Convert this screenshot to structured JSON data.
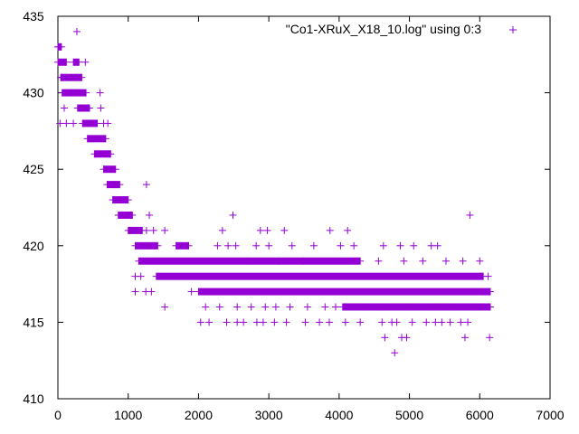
{
  "chart_data": {
    "type": "scatter",
    "title": "",
    "xlabel": "",
    "ylabel": "",
    "xlim": [
      0,
      7000
    ],
    "ylim": [
      410,
      435
    ],
    "x_ticks": [
      0,
      1000,
      2000,
      3000,
      4000,
      5000,
      6000,
      7000
    ],
    "y_ticks": [
      410,
      415,
      420,
      425,
      430,
      435
    ],
    "grid": false,
    "legend_position": "top-right",
    "marker": "+",
    "series": [
      {
        "name": "\"Co1-XRuX_X18_10.log\" using 0:3",
        "color": "#9400d3",
        "segments": [
          {
            "y": 433,
            "x_from": 0,
            "x_to": 50
          },
          {
            "y": 432,
            "x_from": 0,
            "x_to": 120
          },
          {
            "y": 432,
            "x_from": 220,
            "x_to": 300
          },
          {
            "y": 431,
            "x_from": 40,
            "x_to": 340
          },
          {
            "y": 430,
            "x_from": 60,
            "x_to": 400
          },
          {
            "y": 429,
            "x_from": 280,
            "x_to": 450
          },
          {
            "y": 428,
            "x_from": 350,
            "x_to": 560
          },
          {
            "y": 427,
            "x_from": 420,
            "x_to": 680
          },
          {
            "y": 426,
            "x_from": 520,
            "x_to": 750
          },
          {
            "y": 425,
            "x_from": 650,
            "x_to": 820
          },
          {
            "y": 424,
            "x_from": 700,
            "x_to": 880
          },
          {
            "y": 423,
            "x_from": 780,
            "x_to": 1000
          },
          {
            "y": 422,
            "x_from": 860,
            "x_to": 1060
          },
          {
            "y": 421,
            "x_from": 1000,
            "x_to": 1200
          },
          {
            "y": 420,
            "x_from": 1100,
            "x_to": 1420
          },
          {
            "y": 420,
            "x_from": 1680,
            "x_to": 1860
          },
          {
            "y": 419,
            "x_from": 1150,
            "x_to": 4300
          },
          {
            "y": 418,
            "x_from": 1400,
            "x_to": 6050
          },
          {
            "y": 417,
            "x_from": 2000,
            "x_to": 6150
          },
          {
            "y": 416,
            "x_from": 4050,
            "x_to": 6150
          }
        ],
        "points": [
          [
            20,
            433
          ],
          [
            270,
            434
          ],
          [
            30,
            428
          ],
          [
            90,
            429
          ],
          [
            120,
            428
          ],
          [
            220,
            428
          ],
          [
            60,
            431
          ],
          [
            260,
            431
          ],
          [
            390,
            432
          ],
          [
            600,
            430
          ],
          [
            610,
            429
          ],
          [
            650,
            428
          ],
          [
            710,
            428
          ],
          [
            720,
            426
          ],
          [
            800,
            424
          ],
          [
            860,
            422
          ],
          [
            1260,
            424
          ],
          [
            1300,
            422
          ],
          [
            1260,
            421
          ],
          [
            1360,
            421
          ],
          [
            1520,
            421
          ],
          [
            1100,
            418
          ],
          [
            1180,
            418
          ],
          [
            1100,
            417
          ],
          [
            1250,
            417
          ],
          [
            1330,
            417
          ],
          [
            1520,
            416
          ],
          [
            2030,
            415
          ],
          [
            2150,
            415
          ],
          [
            2400,
            415
          ],
          [
            2550,
            415
          ],
          [
            2640,
            415
          ],
          [
            2830,
            415
          ],
          [
            2920,
            415
          ],
          [
            3080,
            415
          ],
          [
            3250,
            415
          ],
          [
            3520,
            415
          ],
          [
            3720,
            415
          ],
          [
            3860,
            415
          ],
          [
            4090,
            415
          ],
          [
            4300,
            415
          ],
          [
            4610,
            415
          ],
          [
            4750,
            415
          ],
          [
            4820,
            415
          ],
          [
            5040,
            415
          ],
          [
            5240,
            415
          ],
          [
            5370,
            415
          ],
          [
            5460,
            415
          ],
          [
            5580,
            415
          ],
          [
            5730,
            415
          ],
          [
            5830,
            415
          ],
          [
            6130,
            416
          ],
          [
            4650,
            414
          ],
          [
            4890,
            414
          ],
          [
            4960,
            414
          ],
          [
            5790,
            414
          ],
          [
            6140,
            414
          ],
          [
            4790,
            413
          ],
          [
            2490,
            422
          ],
          [
            2340,
            421
          ],
          [
            2880,
            421
          ],
          [
            2980,
            421
          ],
          [
            3220,
            421
          ],
          [
            3870,
            421
          ],
          [
            4120,
            421
          ],
          [
            5860,
            422
          ],
          [
            2270,
            420
          ],
          [
            2420,
            420
          ],
          [
            2530,
            420
          ],
          [
            2820,
            420
          ],
          [
            3000,
            420
          ],
          [
            3330,
            420
          ],
          [
            3640,
            420
          ],
          [
            4020,
            420
          ],
          [
            4210,
            420
          ],
          [
            4630,
            420
          ],
          [
            4870,
            420
          ],
          [
            5060,
            420
          ],
          [
            5310,
            420
          ],
          [
            5400,
            420
          ],
          [
            2700,
            419
          ],
          [
            3150,
            419
          ],
          [
            3490,
            419
          ],
          [
            4560,
            419
          ],
          [
            4920,
            419
          ],
          [
            5190,
            419
          ],
          [
            5520,
            419
          ],
          [
            5760,
            419
          ],
          [
            6000,
            419
          ],
          [
            6120,
            418
          ],
          [
            5960,
            417
          ],
          [
            1900,
            417
          ],
          [
            4400,
            416
          ],
          [
            4600,
            416
          ],
          [
            4950,
            416
          ],
          [
            5350,
            416
          ],
          [
            5650,
            416
          ],
          [
            5900,
            416
          ],
          [
            2100,
            416
          ],
          [
            2300,
            416
          ],
          [
            2550,
            416
          ],
          [
            2750,
            416
          ],
          [
            2950,
            416
          ],
          [
            3100,
            416
          ],
          [
            3300,
            416
          ],
          [
            3550,
            416
          ],
          [
            3800,
            416
          ],
          [
            3950,
            416
          ]
        ]
      }
    ]
  }
}
